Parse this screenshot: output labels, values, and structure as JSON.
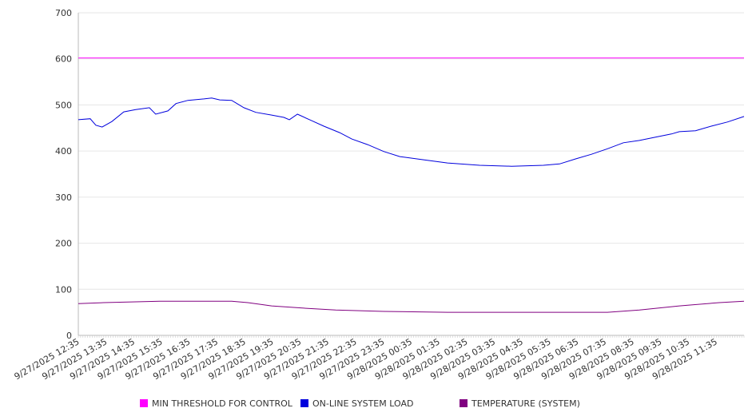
{
  "chart_data": {
    "type": "line",
    "title": "",
    "xlabel": "",
    "ylabel": "",
    "ylim": [
      0,
      700
    ],
    "yticks": [
      "0",
      "100",
      "200",
      "300",
      "400",
      "500",
      "600",
      "700"
    ],
    "x_unit": "hours since 9/27/2025 12:35",
    "xlim": [
      0,
      24
    ],
    "xticks": [
      "9/27/2025 12:35",
      "9/27/2025 13:35",
      "9/27/2025 14:35",
      "9/27/2025 15:35",
      "9/27/2025 16:35",
      "9/27/2025 17:35",
      "9/27/2025 18:35",
      "9/27/2025 19:35",
      "9/27/2025 20:35",
      "9/27/2025 21:35",
      "9/27/2025 22:35",
      "9/27/2025 23:35",
      "9/28/2025 00:35",
      "9/28/2025 01:35",
      "9/28/2025 02:35",
      "9/28/2025 03:35",
      "9/28/2025 04:35",
      "9/28/2025 05:35",
      "9/28/2025 06:35",
      "9/28/2025 07:35",
      "9/28/2025 08:35",
      "9/28/2025 09:35",
      "9/28/2025 10:35",
      "9/28/2025 11:35"
    ],
    "grid": true,
    "legend_position": "bottom",
    "series": [
      {
        "name": "MIN THRESHOLD FOR CONTROL",
        "color": "#ff00ff",
        "x": [
          0,
          24
        ],
        "y": [
          602,
          602
        ]
      },
      {
        "name": "ON-LINE SYSTEM LOAD",
        "color": "#0000dd",
        "x": [
          0,
          0.43,
          0.63,
          0.86,
          1.21,
          1.64,
          2.07,
          2.56,
          2.79,
          3.23,
          3.52,
          3.95,
          4.53,
          4.81,
          5.1,
          5.53,
          5.97,
          6.4,
          6.97,
          7.41,
          7.61,
          7.9,
          8.41,
          8.85,
          9.42,
          9.86,
          10.43,
          11.01,
          11.59,
          12.45,
          13.31,
          14.47,
          15.62,
          16.77,
          17.35,
          17.93,
          18.5,
          19.08,
          19.65,
          20.23,
          20.81,
          21.38,
          21.67,
          22.25,
          22.82,
          23.4,
          24
        ],
        "y": [
          468,
          470,
          456,
          452,
          464,
          485,
          490,
          494,
          480,
          487,
          503,
          510,
          513,
          515,
          511,
          510,
          494,
          484,
          478,
          473,
          468,
          480,
          466,
          454,
          440,
          426,
          414,
          399,
          388,
          381,
          374,
          369,
          367,
          369,
          372,
          383,
          393,
          405,
          418,
          423,
          430,
          437,
          442,
          444,
          454,
          463,
          475
        ]
      },
      {
        "name": "TEMPERATURE (SYSTEM)",
        "color": "#800080",
        "x": [
          0,
          0.92,
          2.94,
          5.53,
          6.11,
          6.97,
          8.13,
          9.28,
          11.01,
          13.31,
          15.91,
          19.08,
          20.23,
          21.67,
          23.11,
          24
        ],
        "y": [
          69,
          71,
          74,
          74,
          71,
          64,
          59,
          55,
          52,
          50,
          50,
          50,
          55,
          64,
          71,
          74
        ]
      }
    ]
  }
}
